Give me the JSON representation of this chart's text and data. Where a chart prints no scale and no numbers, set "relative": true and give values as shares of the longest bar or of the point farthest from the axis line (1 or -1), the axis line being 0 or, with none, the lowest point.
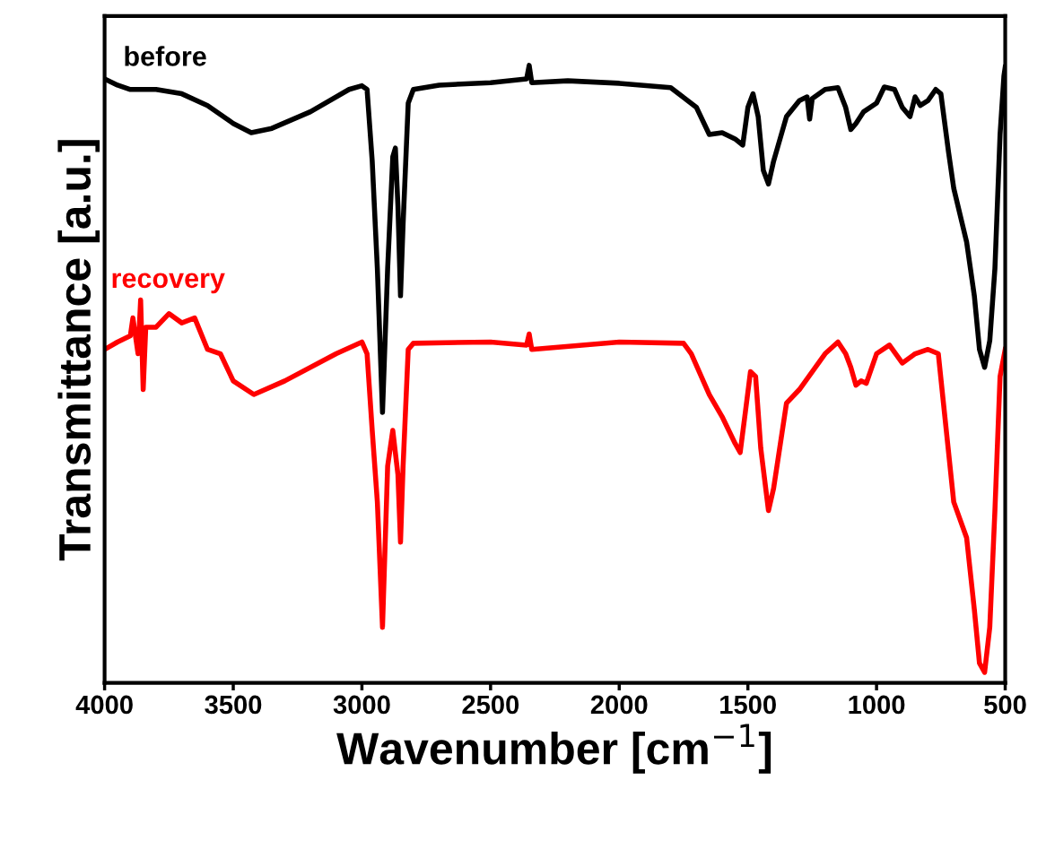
{
  "chart_data": {
    "type": "line",
    "relative": true,
    "xlabel": "Wavenumber [cm$^{−1}$]",
    "ylabel": "Transmittance [a.u.]",
    "xlim": [
      4000,
      500
    ],
    "xticks": [
      4000,
      3500,
      3000,
      2500,
      2000,
      1500,
      1000,
      500
    ],
    "tick_labels": "x",
    "grid": false,
    "legend": false,
    "marker": "none",
    "line_style": "solid",
    "series": [
      {
        "name": "before",
        "color": "#000000",
        "x": [
          4000,
          3950,
          3900,
          3800,
          3700,
          3600,
          3500,
          3430,
          3350,
          3200,
          3050,
          3000,
          2980,
          2960,
          2940,
          2920,
          2900,
          2880,
          2870,
          2860,
          2850,
          2840,
          2820,
          2800,
          2700,
          2500,
          2360,
          2350,
          2340,
          2200,
          2000,
          1800,
          1700,
          1650,
          1600,
          1550,
          1520,
          1500,
          1480,
          1460,
          1440,
          1420,
          1400,
          1350,
          1300,
          1270,
          1260,
          1250,
          1200,
          1150,
          1120,
          1100,
          1080,
          1050,
          1000,
          970,
          930,
          900,
          870,
          850,
          830,
          800,
          770,
          750,
          720,
          700,
          650,
          620,
          600,
          580,
          560,
          540,
          520,
          505,
          500
        ],
        "values": [
          0.978,
          0.968,
          0.961,
          0.961,
          0.954,
          0.935,
          0.906,
          0.891,
          0.898,
          0.925,
          0.961,
          0.967,
          0.961,
          0.845,
          0.671,
          0.438,
          0.671,
          0.852,
          0.866,
          0.772,
          0.627,
          0.743,
          0.939,
          0.961,
          0.968,
          0.972,
          0.978,
          1.0,
          0.972,
          0.975,
          0.971,
          0.964,
          0.932,
          0.888,
          0.891,
          0.881,
          0.871,
          0.932,
          0.954,
          0.917,
          0.83,
          0.808,
          0.845,
          0.917,
          0.943,
          0.949,
          0.913,
          0.946,
          0.961,
          0.964,
          0.932,
          0.896,
          0.906,
          0.925,
          0.939,
          0.965,
          0.961,
          0.932,
          0.917,
          0.949,
          0.935,
          0.943,
          0.961,
          0.954,
          0.859,
          0.801,
          0.714,
          0.627,
          0.54,
          0.511,
          0.554,
          0.671,
          0.888,
          0.983,
          0.997
        ]
      },
      {
        "name": "recovery",
        "color": "#ff0000",
        "x": [
          4000,
          3950,
          3900,
          3890,
          3870,
          3860,
          3850,
          3840,
          3800,
          3750,
          3700,
          3650,
          3600,
          3550,
          3500,
          3420,
          3300,
          3100,
          3000,
          2980,
          2960,
          2940,
          2920,
          2900,
          2880,
          2860,
          2850,
          2840,
          2820,
          2800,
          2500,
          2360,
          2350,
          2340,
          2000,
          1750,
          1720,
          1650,
          1600,
          1550,
          1530,
          1510,
          1490,
          1470,
          1450,
          1420,
          1400,
          1350,
          1300,
          1250,
          1200,
          1150,
          1120,
          1100,
          1080,
          1060,
          1040,
          1000,
          950,
          900,
          850,
          800,
          760,
          740,
          700,
          650,
          620,
          600,
          580,
          560,
          540,
          520,
          500
        ],
        "values": [
          0.54,
          0.552,
          0.562,
          0.591,
          0.533,
          0.62,
          0.475,
          0.576,
          0.576,
          0.598,
          0.583,
          0.591,
          0.54,
          0.533,
          0.489,
          0.467,
          0.489,
          0.533,
          0.552,
          0.533,
          0.409,
          0.293,
          0.09,
          0.351,
          0.409,
          0.337,
          0.228,
          0.351,
          0.54,
          0.55,
          0.552,
          0.547,
          0.565,
          0.54,
          0.552,
          0.55,
          0.533,
          0.467,
          0.431,
          0.388,
          0.373,
          0.438,
          0.504,
          0.496,
          0.38,
          0.279,
          0.315,
          0.453,
          0.475,
          0.504,
          0.533,
          0.552,
          0.533,
          0.511,
          0.482,
          0.489,
          0.485,
          0.533,
          0.547,
          0.518,
          0.533,
          0.54,
          0.533,
          0.453,
          0.293,
          0.235,
          0.119,
          0.032,
          0.017,
          0.09,
          0.279,
          0.496,
          0.54
        ]
      }
    ]
  }
}
